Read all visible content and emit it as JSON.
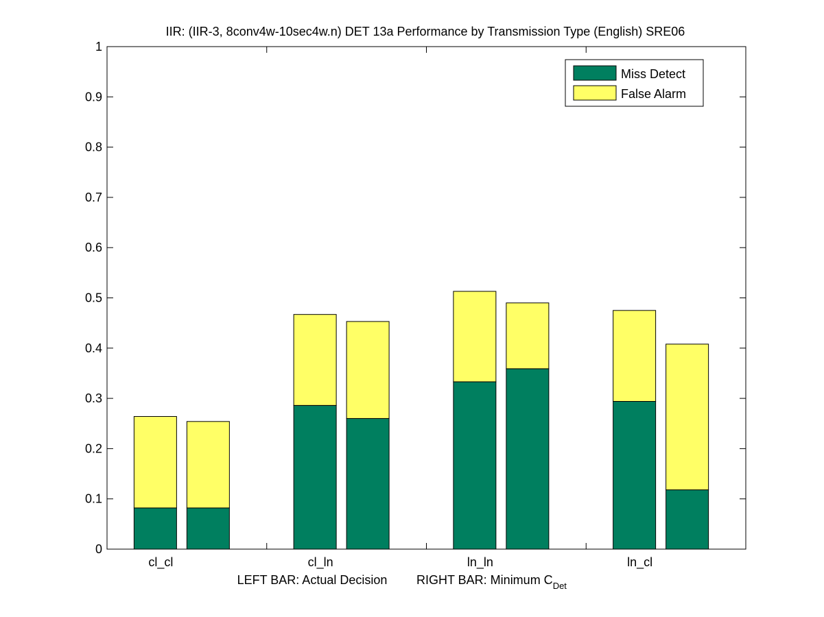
{
  "chart_data": {
    "type": "bar",
    "stacked": true,
    "title": "IIR: (IIR-3, 8conv4w-10sec4w.n) DET 13a Performance by Transmission Type (English) SRE06",
    "categories": [
      "cl_cl",
      "cl_ln",
      "ln_ln",
      "ln_cl"
    ],
    "bars_per_category": [
      "Actual Decision",
      "Minimum C_Det"
    ],
    "series": [
      {
        "name": "Miss Detect",
        "color": "#007f5f",
        "actual_decision": [
          0.082,
          0.286,
          0.333,
          0.294
        ],
        "minimum_cdet": [
          0.082,
          0.26,
          0.359,
          0.118
        ]
      },
      {
        "name": "False Alarm",
        "color": "#ffff66",
        "actual_decision": [
          0.182,
          0.181,
          0.18,
          0.181
        ],
        "minimum_cdet": [
          0.172,
          0.193,
          0.131,
          0.29
        ]
      }
    ],
    "totals": {
      "actual_decision": [
        0.264,
        0.467,
        0.513,
        0.475
      ],
      "minimum_cdet": [
        0.254,
        0.453,
        0.49,
        0.408
      ]
    },
    "ylim": [
      0,
      1
    ],
    "yticks": [
      "0",
      "0.1",
      "0.2",
      "0.3",
      "0.4",
      "0.5",
      "0.6",
      "0.7",
      "0.8",
      "0.9",
      "1"
    ],
    "xlabel_left": "LEFT BAR: Actual Decision",
    "xlabel_right_main": "RIGHT BAR: Minimum C",
    "xlabel_right_sub": "Det",
    "legend_position": "top-right",
    "legend": [
      "Miss Detect",
      "False Alarm"
    ],
    "grid": false
  }
}
